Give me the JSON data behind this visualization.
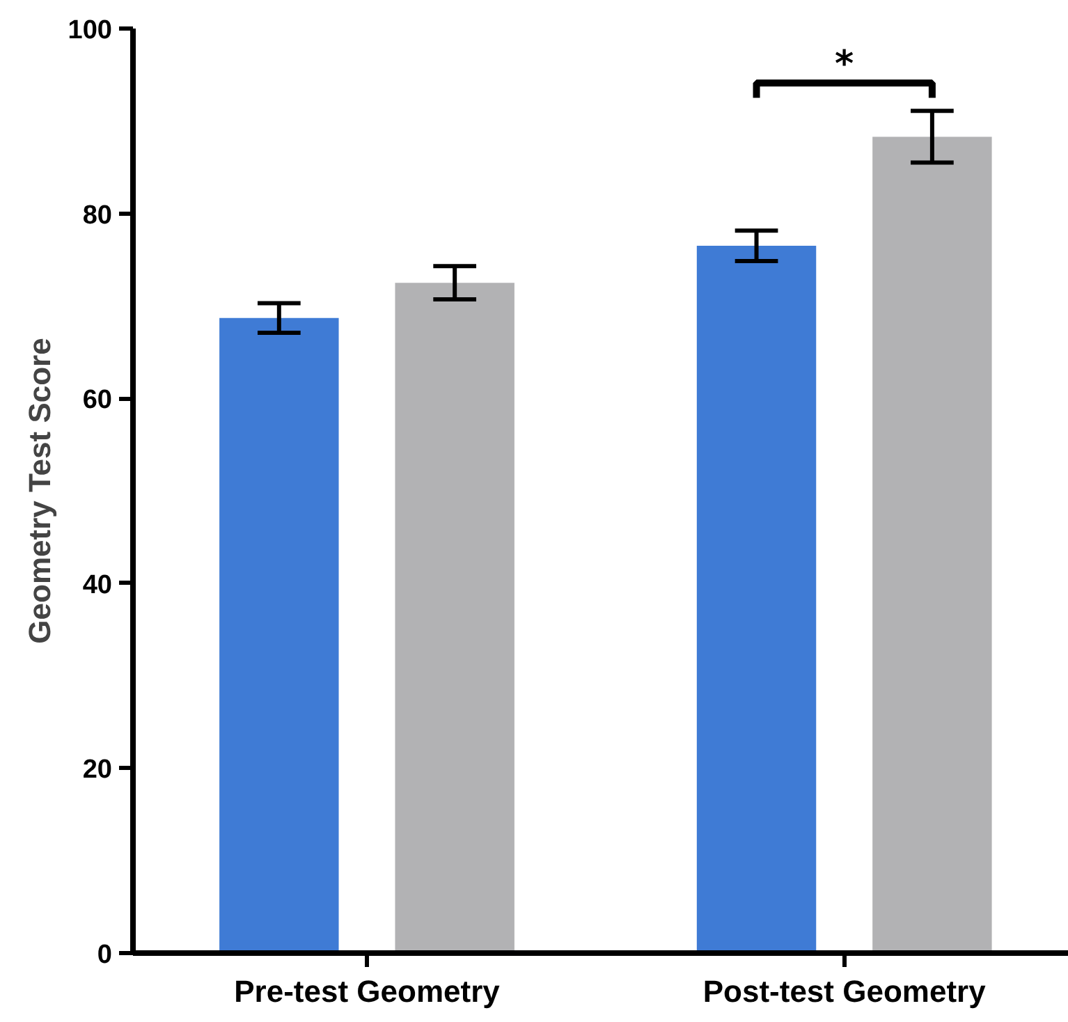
{
  "chart_data": {
    "type": "bar",
    "ylabel": "Geometry Test Score",
    "categories": [
      "Pre-test Geometry",
      "Post-test Geometry"
    ],
    "series": [
      {
        "color": "#3f7bd5",
        "values": [
          68.7,
          76.5
        ],
        "errors": [
          1.6,
          1.65
        ]
      },
      {
        "color": "#b2b2b4",
        "values": [
          72.5,
          88.3
        ],
        "errors": [
          1.8,
          2.8
        ]
      }
    ],
    "ylim": [
      0,
      100
    ],
    "yticks": [
      0,
      20,
      40,
      60,
      80,
      100
    ],
    "grid": false,
    "annotations": [
      "*"
    ]
  }
}
